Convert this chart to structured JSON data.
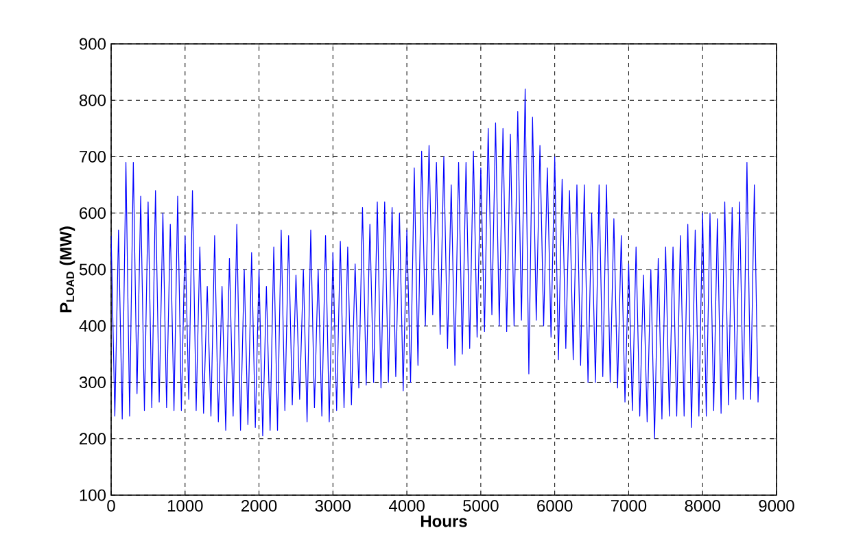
{
  "chart_data": {
    "type": "line",
    "xlabel": "Hours",
    "ylabel": "P$_{LOAD}$ (MW)",
    "xlim": [
      0,
      9000
    ],
    "ylim": [
      100,
      900
    ],
    "xticks": [
      0,
      1000,
      2000,
      3000,
      4000,
      5000,
      6000,
      7000,
      8000,
      9000
    ],
    "yticks": [
      100,
      200,
      300,
      400,
      500,
      600,
      700,
      800,
      900
    ],
    "grid": true,
    "series": [
      {
        "color": "#0000ff",
        "x": [
          0,
          50,
          100,
          150,
          200,
          250,
          300,
          350,
          400,
          450,
          500,
          550,
          600,
          650,
          700,
          750,
          800,
          850,
          900,
          950,
          1000,
          1050,
          1100,
          1150,
          1200,
          1250,
          1300,
          1350,
          1400,
          1450,
          1500,
          1550,
          1600,
          1650,
          1700,
          1750,
          1800,
          1850,
          1900,
          1950,
          2000,
          2050,
          2100,
          2150,
          2200,
          2250,
          2300,
          2350,
          2400,
          2450,
          2500,
          2550,
          2600,
          2650,
          2700,
          2750,
          2800,
          2850,
          2900,
          2950,
          3000,
          3050,
          3100,
          3150,
          3200,
          3250,
          3300,
          3350,
          3400,
          3450,
          3500,
          3550,
          3600,
          3650,
          3700,
          3750,
          3800,
          3850,
          3900,
          3950,
          4000,
          4050,
          4100,
          4150,
          4200,
          4250,
          4300,
          4350,
          4400,
          4450,
          4500,
          4550,
          4600,
          4650,
          4700,
          4750,
          4800,
          4850,
          4900,
          4950,
          5000,
          5050,
          5100,
          5150,
          5200,
          5250,
          5300,
          5350,
          5400,
          5450,
          5500,
          5550,
          5600,
          5650,
          5700,
          5750,
          5800,
          5850,
          5900,
          5950,
          6000,
          6050,
          6100,
          6150,
          6200,
          6250,
          6300,
          6350,
          6400,
          6450,
          6500,
          6550,
          6600,
          6650,
          6700,
          6750,
          6800,
          6850,
          6900,
          6950,
          7000,
          7050,
          7100,
          7150,
          7200,
          7250,
          7300,
          7350,
          7400,
          7450,
          7500,
          7550,
          7600,
          7650,
          7700,
          7750,
          7800,
          7850,
          7900,
          7950,
          8000,
          8050,
          8100,
          8150,
          8200,
          8250,
          8300,
          8350,
          8400,
          8450,
          8500,
          8550,
          8600,
          8650,
          8700,
          8750,
          8760
        ],
        "values": [
          560,
          240,
          570,
          235,
          690,
          240,
          690,
          280,
          630,
          250,
          620,
          255,
          640,
          265,
          600,
          255,
          580,
          250,
          630,
          250,
          560,
          270,
          640,
          250,
          540,
          245,
          470,
          240,
          560,
          230,
          470,
          215,
          520,
          240,
          580,
          215,
          500,
          225,
          530,
          220,
          500,
          205,
          470,
          215,
          540,
          215,
          570,
          250,
          560,
          260,
          490,
          270,
          500,
          230,
          570,
          255,
          500,
          240,
          560,
          230,
          530,
          250,
          550,
          255,
          540,
          260,
          510,
          290,
          610,
          295,
          580,
          300,
          620,
          290,
          620,
          300,
          610,
          310,
          600,
          285,
          570,
          300,
          680,
          330,
          710,
          400,
          720,
          420,
          690,
          385,
          700,
          360,
          650,
          330,
          690,
          350,
          690,
          360,
          710,
          380,
          680,
          390,
          750,
          420,
          760,
          400,
          750,
          390,
          740,
          400,
          780,
          410,
          820,
          315,
          770,
          410,
          720,
          400,
          680,
          380,
          700,
          340,
          660,
          360,
          640,
          340,
          650,
          330,
          650,
          300,
          600,
          300,
          650,
          310,
          650,
          300,
          590,
          290,
          560,
          265,
          510,
          250,
          540,
          240,
          490,
          230,
          500,
          200,
          520,
          235,
          540,
          240,
          540,
          240,
          560,
          240,
          580,
          220,
          570,
          240,
          600,
          240,
          600,
          250,
          590,
          245,
          620,
          260,
          610,
          270,
          620,
          270,
          690,
          270,
          650,
          265,
          310
        ]
      }
    ]
  }
}
